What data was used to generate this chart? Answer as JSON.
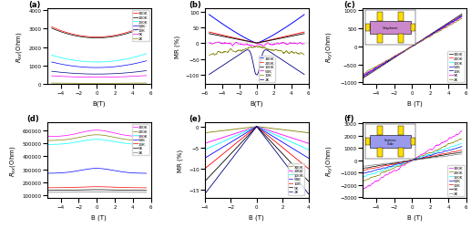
{
  "temps": [
    "300K",
    "200K",
    "100K",
    "50K",
    "10K",
    "5K",
    "2K"
  ],
  "panel_labels": [
    "(a)",
    "(b)",
    "(c)",
    "(d)",
    "(e)",
    "(f)"
  ],
  "colors_a": [
    "red",
    "black",
    "cyan",
    "blue",
    "navy",
    "magenta",
    "olive"
  ],
  "colors_b_order": [
    "blue",
    "red",
    "black",
    "magenta",
    "olive",
    "navy"
  ],
  "colors_b_temps": [
    "300K",
    "200K",
    "100K",
    "50K",
    "10K",
    "2K"
  ],
  "colors_c": [
    "black",
    "red",
    "cyan",
    "blue",
    "navy",
    "magenta",
    "olive"
  ],
  "colors_d": [
    "magenta",
    "olive",
    "cyan",
    "blue",
    "red",
    "black",
    "gray"
  ],
  "colors_e": [
    "navy",
    "olive",
    "magenta",
    "red",
    "black",
    "cyan",
    "blue"
  ],
  "colors_e_temps": [
    "2K",
    "5K",
    "10K",
    "50K",
    "100K",
    "200K",
    "300K"
  ],
  "colors_f": [
    "magenta",
    "olive",
    "cyan",
    "blue",
    "red",
    "black",
    "gray"
  ]
}
